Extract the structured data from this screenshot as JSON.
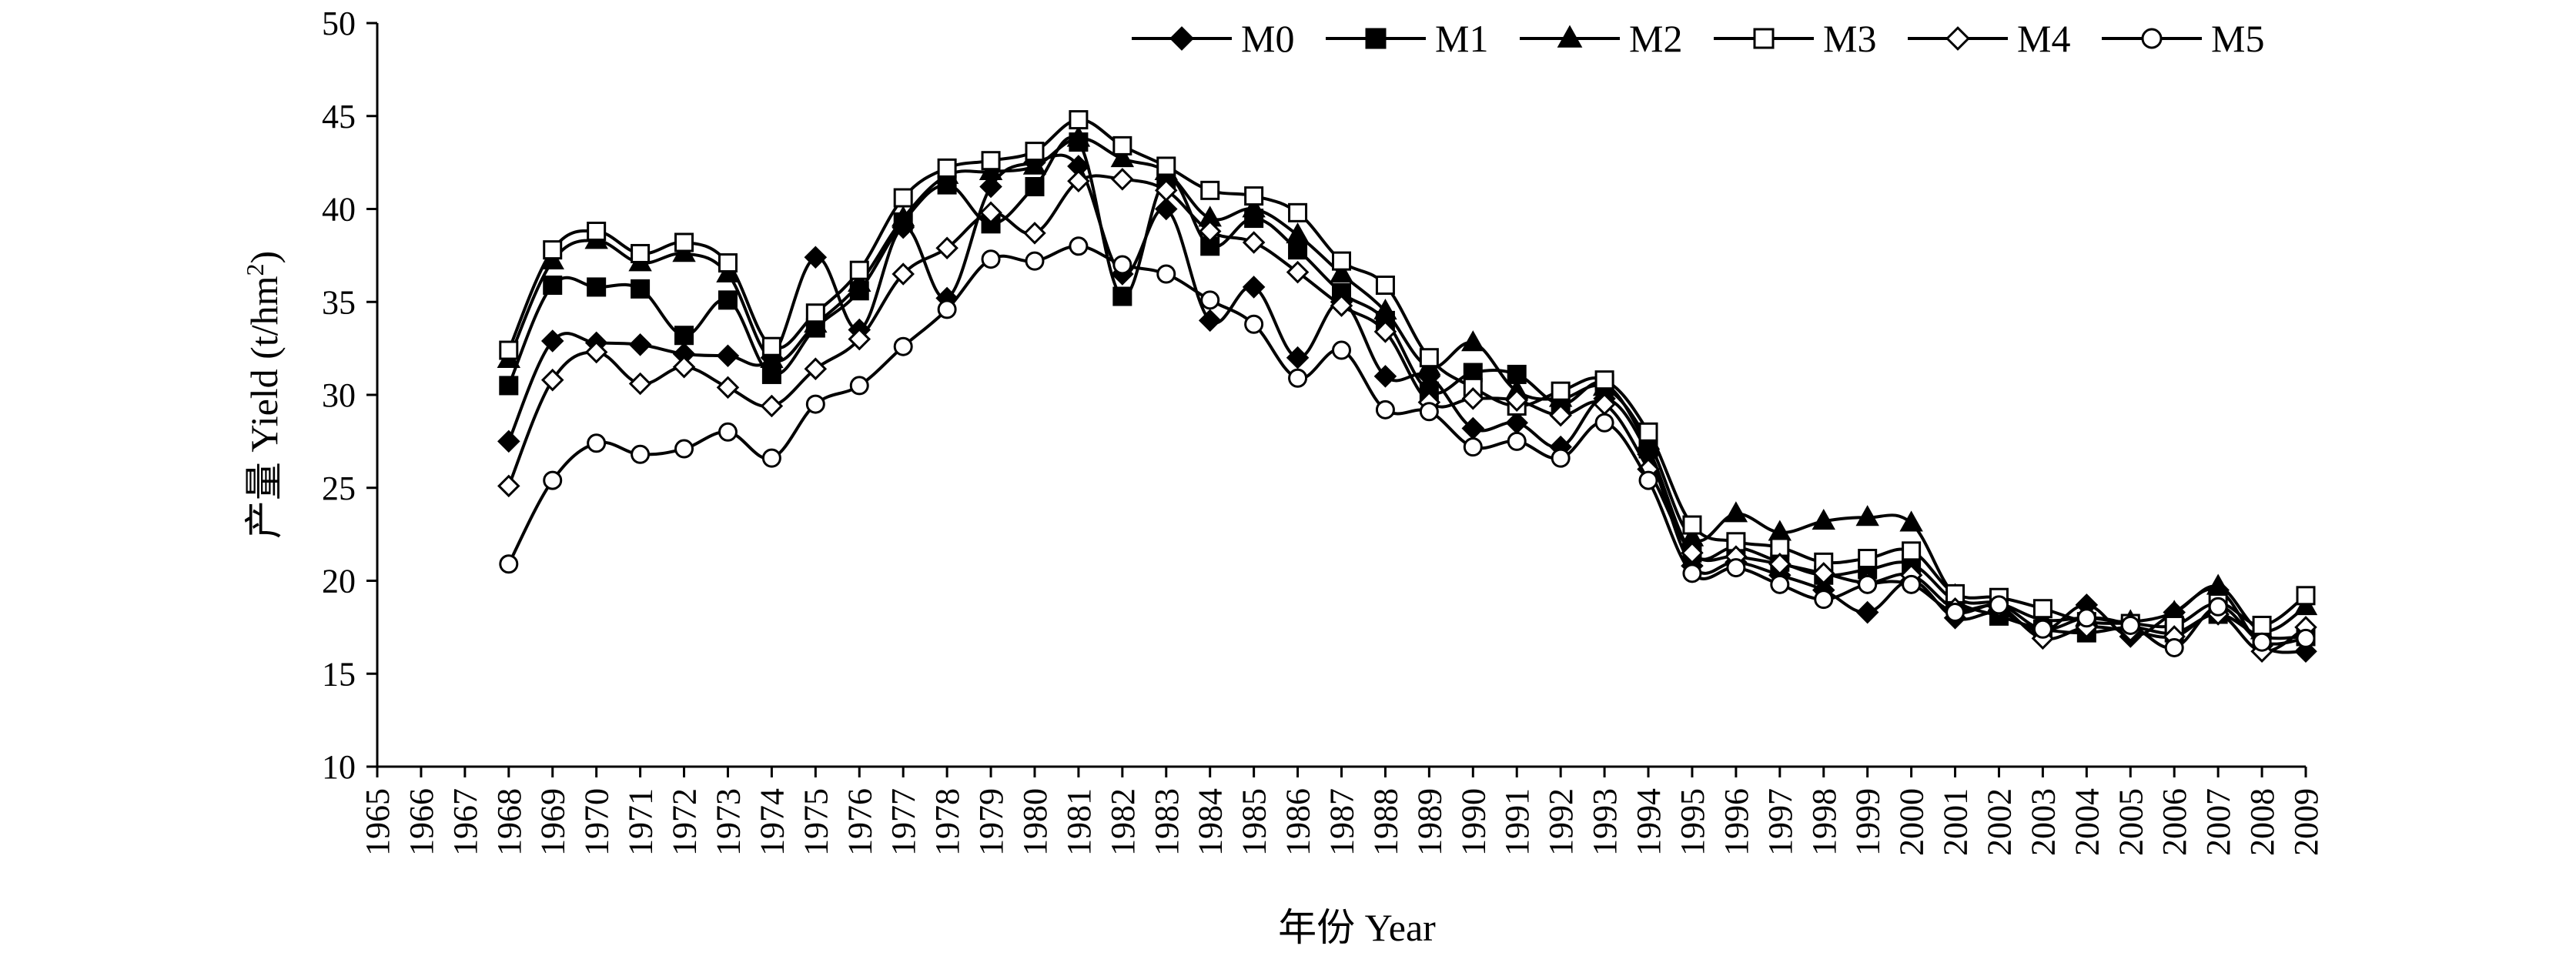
{
  "chart_data": {
    "type": "line",
    "xlabel": "年份 Year",
    "ylabel": "产量 Yield (t/hm²)",
    "ylabel_main": "产量 Yield (t/hm",
    "ylabel_sup": "2",
    "ylabel_end": ")",
    "xlim": [
      1965,
      2009
    ],
    "ylim": [
      10,
      50
    ],
    "yticks": [
      "10",
      "15",
      "20",
      "25",
      "30",
      "35",
      "40",
      "45",
      "50"
    ],
    "xticks": [
      "1965",
      "1966",
      "1967",
      "1968",
      "1969",
      "1970",
      "1971",
      "1972",
      "1973",
      "1974",
      "1975",
      "1976",
      "1977",
      "1978",
      "1979",
      "1980",
      "1981",
      "1982",
      "1983",
      "1984",
      "1985",
      "1986",
      "1987",
      "1988",
      "1989",
      "1990",
      "1991",
      "1992",
      "1993",
      "1994",
      "1995",
      "1996",
      "1997",
      "1998",
      "1999",
      "2000",
      "2001",
      "2002",
      "2003",
      "2004",
      "2005",
      "2006",
      "2007",
      "2008",
      "2009"
    ],
    "grid": false,
    "legend_position": "top-right",
    "x": [
      1968,
      1969,
      1970,
      1971,
      1972,
      1973,
      1974,
      1975,
      1976,
      1977,
      1978,
      1979,
      1980,
      1981,
      1982,
      1983,
      1984,
      1985,
      1986,
      1987,
      1988,
      1989,
      1990,
      1991,
      1992,
      1993,
      1994,
      1995,
      1996,
      1997,
      1998,
      1999,
      2000,
      2001,
      2002,
      2003,
      2004,
      2005,
      2006,
      2007,
      2008,
      2009
    ],
    "series": [
      {
        "name": "M0",
        "marker": "diamond-filled",
        "values": [
          27.5,
          32.9,
          32.8,
          32.7,
          32.2,
          32.1,
          32.0,
          37.4,
          33.5,
          39.0,
          35.2,
          41.2,
          42.5,
          42.3,
          36.5,
          40.0,
          34.0,
          35.8,
          32.0,
          35.0,
          31.0,
          31.0,
          28.2,
          28.5,
          27.2,
          29.8,
          26.8,
          20.8,
          21.0,
          20.3,
          19.5,
          18.3,
          20.0,
          18.0,
          18.3,
          17.3,
          18.7,
          17.0,
          18.3,
          19.5,
          16.5,
          16.2
        ]
      },
      {
        "name": "M1",
        "marker": "square-filled",
        "values": [
          30.5,
          35.9,
          35.8,
          35.7,
          33.2,
          35.1,
          31.1,
          33.6,
          35.6,
          39.3,
          41.3,
          39.2,
          41.2,
          43.6,
          35.3,
          41.6,
          38.0,
          39.5,
          37.8,
          35.5,
          34.0,
          30.2,
          31.2,
          31.1,
          29.5,
          30.6,
          27.1,
          21.5,
          21.8,
          21.0,
          20.3,
          20.6,
          20.9,
          18.9,
          18.1,
          17.4,
          17.2,
          17.5,
          17.2,
          18.2,
          17.0,
          17.0
        ]
      },
      {
        "name": "M2",
        "marker": "triangle-filled",
        "values": [
          31.9,
          37.2,
          38.3,
          37.1,
          37.6,
          36.5,
          31.9,
          33.8,
          36.0,
          39.5,
          41.8,
          42.0,
          42.3,
          43.8,
          42.7,
          42.0,
          39.5,
          40.0,
          38.6,
          36.5,
          34.5,
          31.5,
          32.8,
          30.2,
          29.8,
          30.4,
          27.5,
          22.3,
          23.6,
          22.6,
          23.2,
          23.4,
          23.1,
          19.2,
          18.8,
          17.9,
          18.0,
          17.8,
          18.3,
          19.7,
          17.3,
          18.6
        ]
      },
      {
        "name": "M3",
        "marker": "square-open",
        "values": [
          32.4,
          37.8,
          38.8,
          37.6,
          38.2,
          37.1,
          32.6,
          34.4,
          36.7,
          40.6,
          42.2,
          42.6,
          43.1,
          44.8,
          43.4,
          42.3,
          41.0,
          40.7,
          39.8,
          37.2,
          35.9,
          32.0,
          30.4,
          29.4,
          30.2,
          30.8,
          28.0,
          23.0,
          22.1,
          21.8,
          21.0,
          21.2,
          21.6,
          19.3,
          19.1,
          18.5,
          17.8,
          17.7,
          17.6,
          18.8,
          17.6,
          19.2
        ]
      },
      {
        "name": "M4",
        "marker": "diamond-open",
        "values": [
          25.1,
          30.8,
          32.3,
          30.6,
          31.5,
          30.4,
          29.4,
          31.4,
          33.0,
          36.5,
          37.9,
          39.8,
          38.7,
          41.5,
          41.6,
          41.0,
          38.8,
          38.2,
          36.6,
          34.8,
          33.4,
          29.6,
          29.8,
          29.7,
          28.9,
          29.5,
          26.0,
          21.5,
          21.3,
          20.9,
          20.4,
          19.9,
          20.3,
          18.5,
          18.6,
          16.9,
          17.5,
          17.3,
          17.0,
          18.2,
          16.2,
          17.5
        ]
      },
      {
        "name": "M5",
        "marker": "circle-open",
        "values": [
          20.9,
          25.4,
          27.4,
          26.8,
          27.1,
          28.0,
          26.6,
          29.5,
          30.5,
          32.6,
          34.6,
          37.3,
          37.2,
          38.0,
          37.0,
          36.5,
          35.1,
          33.8,
          30.9,
          32.4,
          29.2,
          29.1,
          27.2,
          27.5,
          26.6,
          28.5,
          25.4,
          20.4,
          20.7,
          19.8,
          19.0,
          19.8,
          19.8,
          18.3,
          18.7,
          17.4,
          18.0,
          17.6,
          16.4,
          18.6,
          16.7,
          16.9
        ]
      }
    ]
  }
}
